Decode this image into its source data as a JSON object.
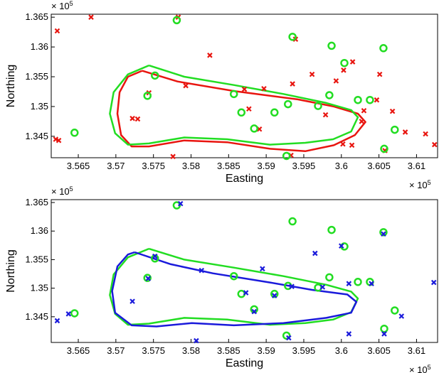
{
  "chart_data": [
    {
      "type": "scatter",
      "xlabel": "Easting",
      "ylabel": "Northing",
      "x_scale": {
        "base": "× 10",
        "exponent": "5"
      },
      "y_scale": {
        "base": "× 10",
        "exponent": "5"
      },
      "xlim": [
        3.5614,
        3.6128
      ],
      "ylim": [
        1.3414,
        1.3655
      ],
      "xticks": [
        3.565,
        3.57,
        3.575,
        3.58,
        3.585,
        3.59,
        3.595,
        3.6,
        3.605,
        3.61
      ],
      "yticks": [
        1.345,
        1.35,
        1.355,
        1.36,
        1.365
      ],
      "series": [
        {
          "color": "#e8150f",
          "marker": "line",
          "x": [
            3.5735,
            3.5782,
            3.5857,
            3.5942,
            3.599,
            3.6022,
            3.6032,
            3.6018,
            3.599,
            3.5952,
            3.5905,
            3.5848,
            3.5791,
            3.5744,
            3.5721,
            3.5707,
            3.5702,
            3.5705,
            3.5716,
            3.5735
          ],
          "values": [
            1.356,
            1.3542,
            1.3526,
            1.3512,
            1.35,
            1.3488,
            1.3474,
            1.3452,
            1.3435,
            1.3425,
            1.3429,
            1.344,
            1.3443,
            1.3433,
            1.3433,
            1.3452,
            1.3488,
            1.3524,
            1.355,
            1.356
          ]
        },
        {
          "color": "#22dd22",
          "marker": "line",
          "x": [
            3.5744,
            3.5791,
            3.5857,
            3.5923,
            3.598,
            3.6013,
            3.6022,
            3.6013,
            3.5989,
            3.5952,
            3.5905,
            3.5848,
            3.5791,
            3.5744,
            3.5716,
            3.5699,
            3.5692,
            3.5697,
            3.5716,
            3.5744
          ],
          "values": [
            1.3569,
            1.355,
            1.3536,
            1.3521,
            1.3506,
            1.3494,
            1.3482,
            1.3458,
            1.3445,
            1.3439,
            1.3436,
            1.3445,
            1.3448,
            1.3438,
            1.3436,
            1.3455,
            1.3488,
            1.3524,
            1.3554,
            1.3569
          ]
        },
        {
          "color": "#e8150f",
          "marker": "x",
          "x": [
            3.5622,
            3.5667,
            3.5783,
            3.5825,
            3.5793,
            3.5744,
            3.5729,
            3.5722,
            3.5776,
            3.5877,
            3.5871,
            3.5897,
            3.5935,
            3.5961,
            3.5939,
            3.5993,
            3.5979,
            3.6015,
            3.6003,
            3.6051,
            3.6047,
            3.603,
            3.6027,
            3.6068,
            3.6085,
            3.6112,
            3.6124,
            3.6058,
            3.6014,
            3.6002,
            3.5933,
            3.5891,
            3.562,
            3.5624
          ],
          "values": [
            1.3627,
            1.365,
            1.365,
            1.3586,
            1.3535,
            1.3523,
            1.3479,
            1.348,
            1.3416,
            1.3496,
            1.3529,
            1.353,
            1.3538,
            1.3554,
            1.3613,
            1.3543,
            1.3486,
            1.3575,
            1.3561,
            1.3554,
            1.3511,
            1.3493,
            1.3475,
            1.3492,
            1.3457,
            1.3454,
            1.3436,
            1.3426,
            1.3435,
            1.3437,
            1.3418,
            1.3462,
            1.3445,
            1.3443
          ]
        },
        {
          "color": "#22dd22",
          "marker": "o",
          "x": [
            3.5645,
            3.5781,
            3.5752,
            3.5742,
            3.5935,
            3.5987,
            3.6056,
            3.6004,
            3.5857,
            3.5867,
            3.5884,
            3.5911,
            3.5929,
            3.5969,
            3.5984,
            3.6022,
            3.6038,
            3.6071,
            3.6057,
            3.5927
          ],
          "values": [
            1.3456,
            1.3645,
            1.3552,
            1.3518,
            1.3617,
            1.3602,
            1.3598,
            1.3573,
            1.3521,
            1.349,
            1.3463,
            1.349,
            1.3504,
            1.3501,
            1.3519,
            1.3511,
            1.3511,
            1.3461,
            1.3429,
            1.3417
          ]
        }
      ]
    },
    {
      "type": "scatter",
      "xlabel": "Easting",
      "ylabel": "Northing",
      "x_scale": {
        "base": "× 10",
        "exponent": "5"
      },
      "y_scale": {
        "base": "× 10",
        "exponent": "5"
      },
      "xlim": [
        3.5614,
        3.6128
      ],
      "ylim": [
        1.3405,
        1.3655
      ],
      "xticks": [
        3.565,
        3.57,
        3.575,
        3.58,
        3.585,
        3.59,
        3.595,
        3.6,
        3.605,
        3.61
      ],
      "yticks": [
        1.345,
        1.35,
        1.355,
        1.36,
        1.365
      ],
      "series": [
        {
          "color": "#22dd22",
          "marker": "line",
          "x": [
            3.5744,
            3.5791,
            3.5857,
            3.5923,
            3.598,
            3.6013,
            3.6022,
            3.6013,
            3.5989,
            3.5952,
            3.5905,
            3.5848,
            3.5791,
            3.5744,
            3.5716,
            3.5699,
            3.5692,
            3.5697,
            3.5716,
            3.5744
          ],
          "values": [
            1.3569,
            1.355,
            1.3536,
            1.3521,
            1.3506,
            1.3494,
            1.3482,
            1.3458,
            1.3445,
            1.3439,
            1.3436,
            1.3445,
            1.3448,
            1.3438,
            1.3436,
            1.3455,
            1.3488,
            1.3524,
            1.3554,
            1.3569
          ]
        },
        {
          "color": "#1a1adb",
          "marker": "line",
          "x": [
            3.5725,
            3.5773,
            3.5829,
            3.5905,
            3.5961,
            3.6008,
            3.602,
            3.6013,
            3.598,
            3.5923,
            3.5857,
            3.5801,
            3.5754,
            3.5721,
            3.5699,
            3.5695,
            3.5702,
            3.5716,
            3.5725
          ],
          "values": [
            1.3563,
            1.3542,
            1.3526,
            1.351,
            1.3497,
            1.3489,
            1.3476,
            1.3457,
            1.3448,
            1.3439,
            1.3435,
            1.3439,
            1.3433,
            1.3435,
            1.3457,
            1.3495,
            1.3538,
            1.3559,
            1.3563
          ]
        },
        {
          "color": "#22dd22",
          "marker": "o",
          "x": [
            3.5645,
            3.5781,
            3.5752,
            3.5742,
            3.5935,
            3.5987,
            3.6056,
            3.6004,
            3.5857,
            3.5867,
            3.5884,
            3.5911,
            3.5929,
            3.5969,
            3.5984,
            3.6022,
            3.6038,
            3.6071,
            3.6057,
            3.5927
          ],
          "values": [
            1.3456,
            1.3645,
            1.3552,
            1.3518,
            1.3617,
            1.3602,
            1.3598,
            1.3573,
            1.3521,
            1.349,
            1.3463,
            1.349,
            1.3504,
            1.3501,
            1.3519,
            1.3511,
            1.3511,
            1.3461,
            1.3429,
            1.3417
          ]
        },
        {
          "color": "#1a1adb",
          "marker": "x",
          "x": [
            3.5622,
            3.5637,
            3.5722,
            3.5743,
            3.5752,
            3.5786,
            3.5814,
            3.5807,
            3.5873,
            3.5884,
            3.5895,
            3.5911,
            3.593,
            3.5934,
            3.5965,
            3.5975,
            3.6,
            3.601,
            3.601,
            3.604,
            3.6056,
            3.6057,
            3.608,
            3.6123
          ],
          "values": [
            1.3443,
            1.3455,
            1.3477,
            1.3517,
            1.3556,
            1.3648,
            1.3531,
            1.3408,
            1.3492,
            1.3459,
            1.3534,
            1.3487,
            1.3413,
            1.3503,
            1.3561,
            1.3502,
            1.3574,
            1.3508,
            1.342,
            1.3508,
            1.3595,
            1.342,
            1.3451,
            1.351
          ]
        }
      ]
    }
  ]
}
